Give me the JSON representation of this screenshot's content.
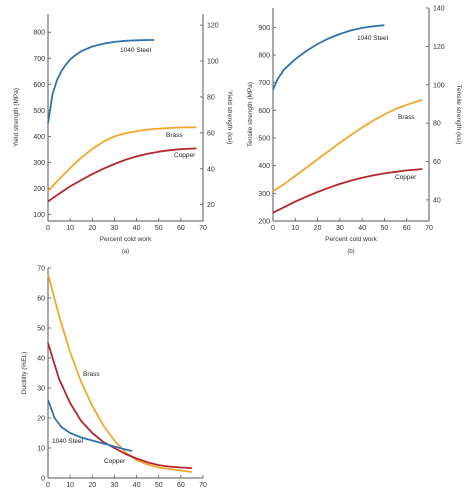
{
  "colors": {
    "steel": "#2e73b0",
    "brass": "#f2a72b",
    "copper": "#b5262c",
    "axis": "#555555"
  },
  "chart_data": [
    {
      "type": "line",
      "caption": "(a)",
      "xlabel": "Percent cold work",
      "ylabel": "Yield strength (MPa)",
      "ylabel_right": "Yield strength (ksi)",
      "xlim": [
        0,
        70
      ],
      "ylim": [
        75,
        870
      ],
      "ylim_right_ksi": [
        10.9,
        126.2
      ],
      "xticks": [
        0,
        10,
        20,
        30,
        40,
        50,
        60,
        70
      ],
      "yticks": [
        100,
        200,
        300,
        400,
        500,
        600,
        700,
        800
      ],
      "yticks_right": [
        20,
        40,
        60,
        80,
        100,
        120
      ],
      "grid": false,
      "series": [
        {
          "name": "1040 Steel",
          "color": "#2e73b0",
          "x": [
            0,
            2,
            4,
            6,
            8,
            10,
            12,
            15,
            20,
            25,
            30,
            35,
            40,
            45,
            48
          ],
          "y": [
            450,
            560,
            615,
            650,
            675,
            695,
            710,
            727,
            745,
            756,
            763,
            767,
            769,
            770,
            770
          ]
        },
        {
          "name": "Brass",
          "color": "#f2a72b",
          "x": [
            0,
            5,
            10,
            15,
            20,
            25,
            30,
            35,
            40,
            45,
            50,
            55,
            60,
            65,
            67
          ],
          "y": [
            190,
            235,
            278,
            318,
            352,
            380,
            400,
            412,
            420,
            426,
            430,
            432,
            434,
            435,
            435
          ]
        },
        {
          "name": "Copper",
          "color": "#b5262c",
          "x": [
            0,
            5,
            10,
            15,
            20,
            25,
            30,
            35,
            40,
            45,
            50,
            55,
            60,
            65,
            67
          ],
          "y": [
            150,
            180,
            208,
            232,
            255,
            276,
            294,
            310,
            323,
            333,
            341,
            347,
            351,
            353,
            354
          ]
        }
      ]
    },
    {
      "type": "line",
      "caption": "(b)",
      "xlabel": "Percent cold work",
      "ylabel": "Tensile strength (MPa)",
      "ylabel_right": "Tensile strength (ksi)",
      "xlim": [
        0,
        70
      ],
      "ylim": [
        200,
        970
      ],
      "ylim_right_ksi": [
        29,
        140
      ],
      "xticks": [
        0,
        10,
        20,
        30,
        40,
        50,
        60,
        70
      ],
      "yticks": [
        200,
        300,
        400,
        500,
        600,
        700,
        800,
        900
      ],
      "yticks_right": [
        40,
        60,
        80,
        100,
        120,
        140
      ],
      "grid": false,
      "series": [
        {
          "name": "1040 Steel",
          "color": "#2e73b0",
          "x": [
            0,
            2,
            5,
            10,
            15,
            20,
            25,
            30,
            35,
            40,
            45,
            50
          ],
          "y": [
            675,
            712,
            748,
            785,
            815,
            840,
            860,
            876,
            889,
            898,
            904,
            908
          ]
        },
        {
          "name": "Brass",
          "color": "#f2a72b",
          "x": [
            0,
            5,
            10,
            15,
            20,
            25,
            30,
            35,
            40,
            45,
            50,
            55,
            60,
            65,
            67
          ],
          "y": [
            308,
            333,
            363,
            393,
            423,
            453,
            483,
            511,
            538,
            563,
            585,
            605,
            620,
            633,
            638
          ]
        },
        {
          "name": "Copper",
          "color": "#b5262c",
          "x": [
            0,
            5,
            10,
            15,
            20,
            25,
            30,
            35,
            40,
            45,
            50,
            55,
            60,
            65,
            67
          ],
          "y": [
            230,
            250,
            270,
            288,
            305,
            320,
            334,
            346,
            356,
            365,
            372,
            378,
            383,
            386,
            388
          ]
        }
      ]
    },
    {
      "type": "line",
      "caption": "(c)",
      "xlabel": "",
      "ylabel": "Ductility (%EL)",
      "xlim": [
        0,
        70
      ],
      "ylim": [
        0,
        70
      ],
      "xticks": [
        0,
        10,
        20,
        30,
        40,
        50,
        60,
        70
      ],
      "yticks": [
        0,
        10,
        20,
        30,
        40,
        50,
        60,
        70
      ],
      "grid": false,
      "series": [
        {
          "name": "Brass",
          "color": "#f2a72b",
          "x": [
            0,
            5,
            10,
            15,
            20,
            25,
            30,
            35,
            40,
            45,
            50,
            55,
            60,
            65
          ],
          "y": [
            68,
            54,
            42,
            32,
            24,
            17.5,
            12.5,
            8.5,
            6,
            4.5,
            3.5,
            3,
            2.5,
            2
          ]
        },
        {
          "name": "Copper",
          "color": "#b5262c",
          "x": [
            0,
            5,
            10,
            15,
            20,
            25,
            30,
            35,
            40,
            45,
            50,
            55,
            60,
            65
          ],
          "y": [
            45,
            33,
            25,
            19,
            15,
            12,
            10,
            8,
            6.5,
            5.2,
            4.3,
            3.8,
            3.5,
            3.3
          ]
        },
        {
          "name": "1040 Steel",
          "color": "#2e73b0",
          "x": [
            0,
            3,
            6,
            10,
            15,
            20,
            25,
            30,
            35,
            38
          ],
          "y": [
            26,
            20,
            17,
            15,
            13.5,
            12.5,
            11.5,
            10.5,
            9.5,
            9
          ]
        }
      ]
    }
  ]
}
